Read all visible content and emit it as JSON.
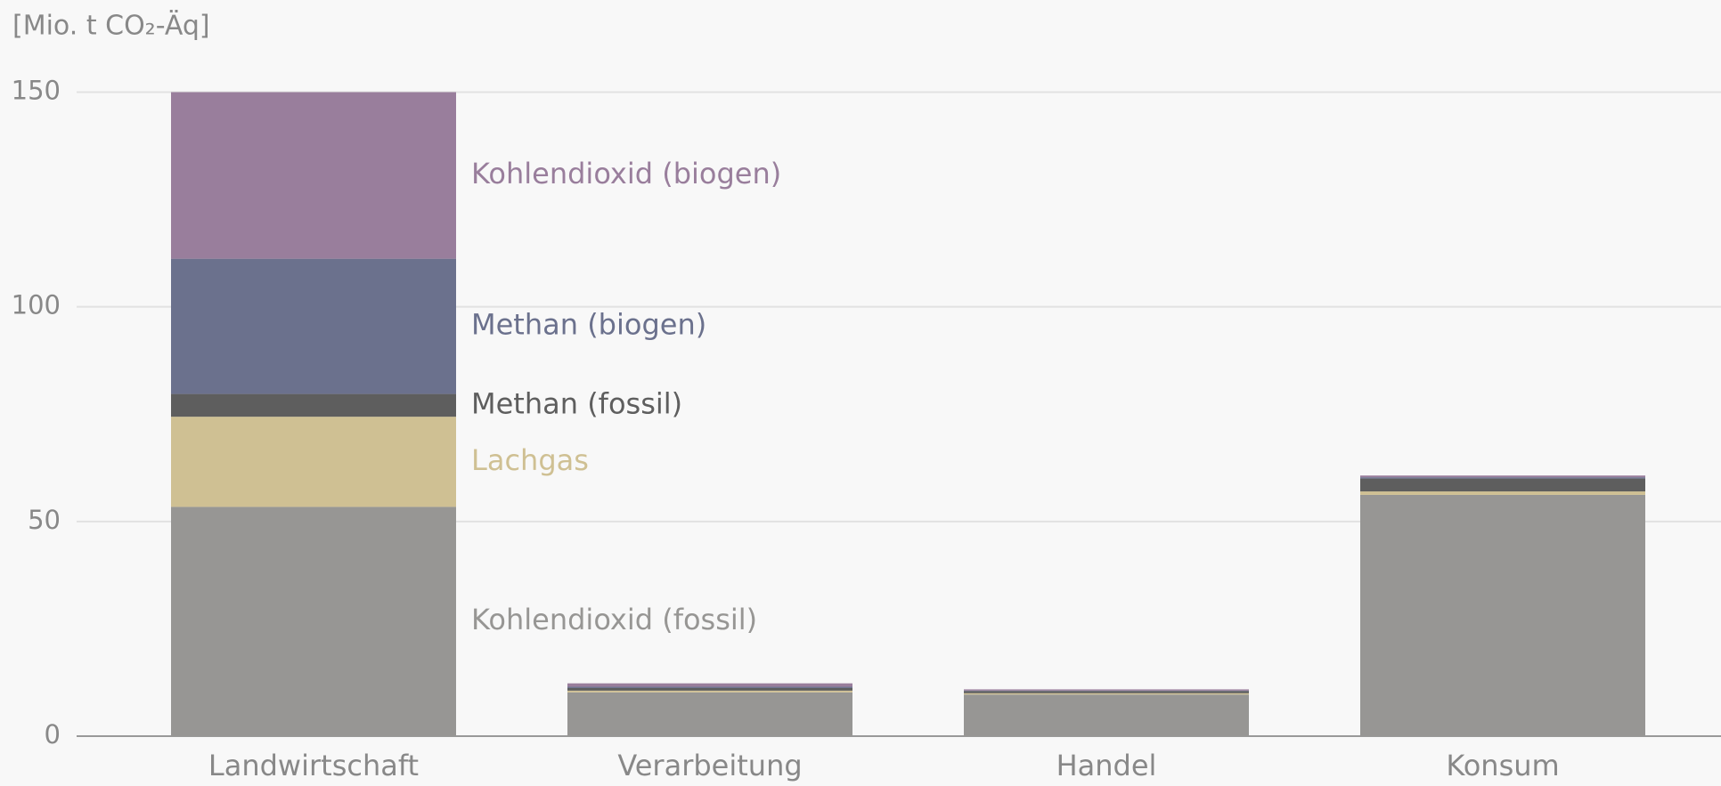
{
  "chart_data": {
    "type": "stacked_bar",
    "y_label": "[Mio. t CO₂-Äq]",
    "categories": [
      "Landwirtschaft",
      "Verarbeitung",
      "Handel",
      "Konsum"
    ],
    "series": [
      {
        "name": "Kohlendioxid (fossil)",
        "color": "#979694",
        "values": [
          53.4,
          10.2,
          9.7,
          56.2
        ]
      },
      {
        "name": "Lachgas",
        "color": "#cfc093",
        "values": [
          21.0,
          0.4,
          0.3,
          0.8
        ]
      },
      {
        "name": "Methan (fossil)",
        "color": "#5e5e5e",
        "values": [
          5.3,
          0.6,
          0.5,
          3.0
        ]
      },
      {
        "name": "Methan (biogen)",
        "color": "#6b718d",
        "values": [
          31.5,
          0.3,
          0.1,
          0.3
        ]
      },
      {
        "name": "Kohlendioxid (biogen)",
        "color": "#997e9c",
        "values": [
          38.8,
          0.8,
          0.3,
          0.4
        ]
      }
    ],
    "ylim": [
      0,
      150
    ],
    "yticks": [
      0,
      50,
      100,
      150
    ],
    "grid": true
  }
}
